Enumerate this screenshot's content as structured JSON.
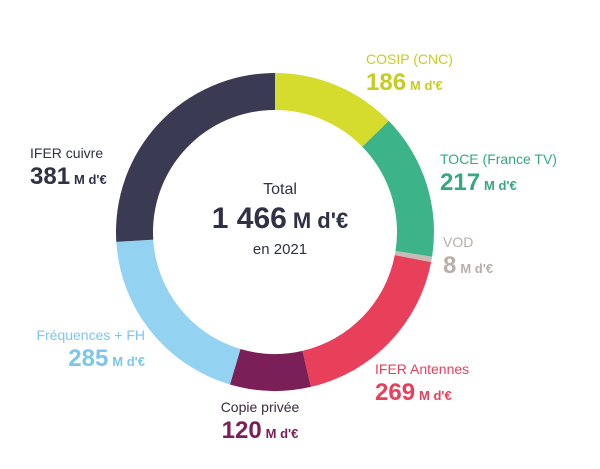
{
  "chart_data": {
    "type": "pie",
    "style": "donut",
    "total": {
      "label": "Total",
      "value": "1 466",
      "unit": "M d'€",
      "subtitle": "en 2021"
    },
    "unit": "M d'€",
    "slices": [
      {
        "name": "COSIP (CNC)",
        "value": 186,
        "color": "#d6dc2e"
      },
      {
        "name": "TOCE (France TV)",
        "value": 217,
        "color": "#3db38a"
      },
      {
        "name": "VOD",
        "value": 8,
        "color": "#c6bdb7"
      },
      {
        "name": "IFER Antennes",
        "value": 269,
        "color": "#e8405a"
      },
      {
        "name": "Copie privée",
        "value": 120,
        "color": "#7a1f57"
      },
      {
        "name": "Fréquences + FH",
        "value": 285,
        "color": "#94d2f1"
      },
      {
        "name": "IFER cuivre",
        "value": 381,
        "color": "#3a3a52"
      }
    ]
  }
}
